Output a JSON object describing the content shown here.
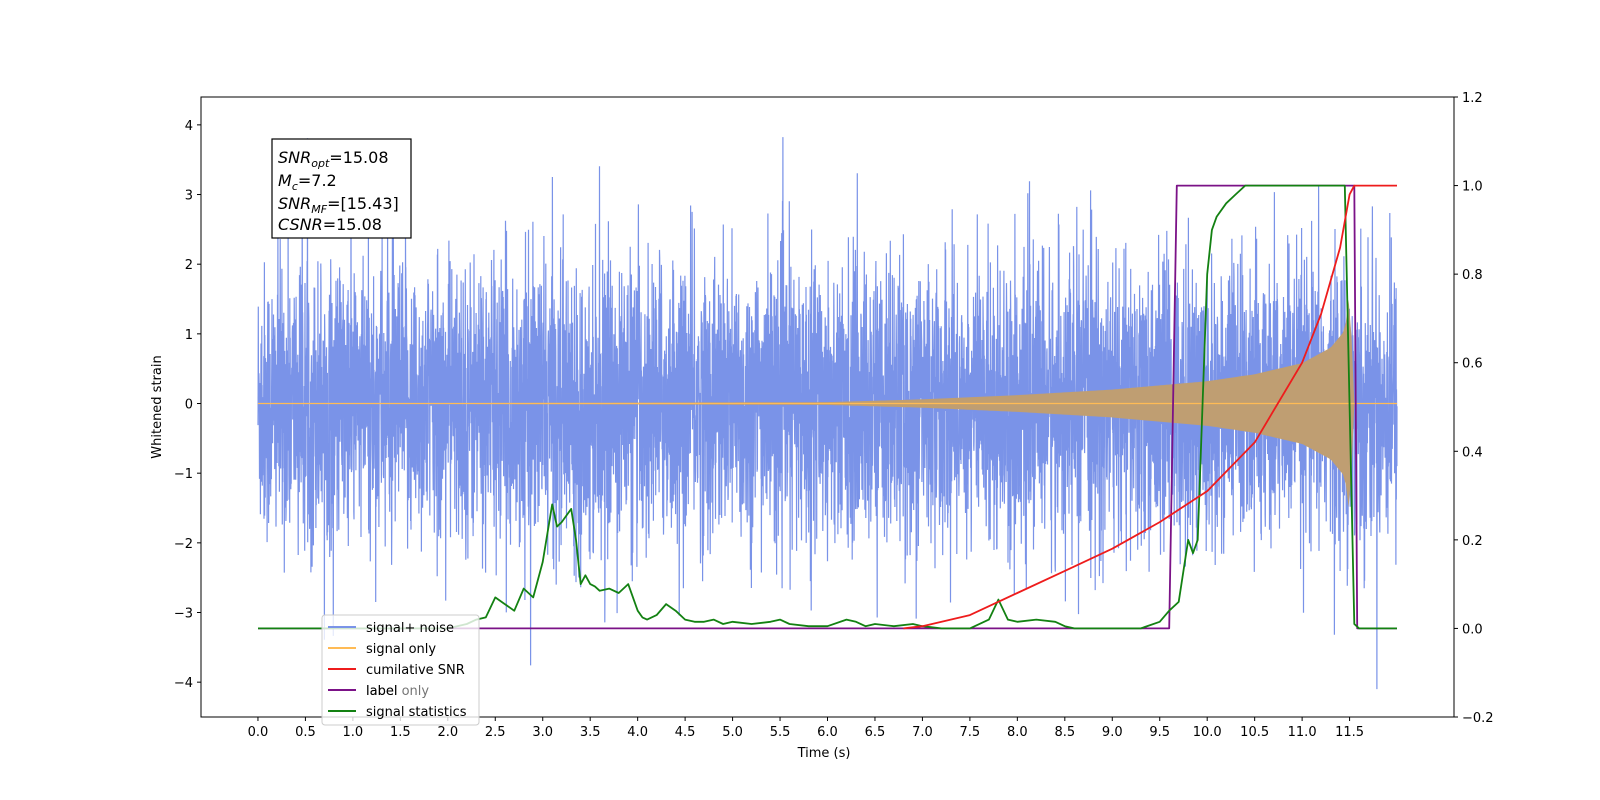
{
  "chart_data": {
    "type": "line",
    "xlabel": "Time (s)",
    "ylabel": "Whitened strain",
    "xlim": [
      -0.6,
      12.6
    ],
    "ylim": [
      -4.5,
      4.4
    ],
    "y2lim": [
      -0.2,
      1.2
    ],
    "x_ticks": [
      "0.0",
      "0.5",
      "1.0",
      "1.5",
      "2.0",
      "2.5",
      "3.0",
      "3.5",
      "4.0",
      "4.5",
      "5.0",
      "5.5",
      "6.0",
      "6.5",
      "7.0",
      "7.5",
      "8.0",
      "8.5",
      "9.0",
      "9.5",
      "10.0",
      "10.5",
      "11.0",
      "11.5"
    ],
    "y_ticks": [
      "−4",
      "−3",
      "−2",
      "−1",
      "0",
      "1",
      "2",
      "3",
      "4"
    ],
    "y2_ticks": [
      "−0.2",
      "0.0",
      "0.2",
      "0.4",
      "0.6",
      "0.8",
      "1.0",
      "1.2"
    ],
    "grid": false,
    "legend_position": "lower-left",
    "annotation": {
      "snr_opt": {
        "base": "SNR",
        "sub": "opt",
        "value": "=15.08"
      },
      "mc": {
        "base": "M",
        "sub": "c",
        "value": "=7.2"
      },
      "snr_mf": {
        "base": "SNR",
        "sub": "MF",
        "value": "=[15.43]"
      },
      "csnr": {
        "base": "CSNR",
        "value": "=15.08"
      }
    },
    "series": [
      {
        "name": "signal+ noise",
        "color": "#7a93e8",
        "axis": "left",
        "description_values": {
          "noise_sigma": 1.0,
          "peak_min": -4.1,
          "peak_max": 4.0
        },
        "x_range": [
          0.0,
          12.0
        ]
      },
      {
        "name": "signal only",
        "color": "#ffbb55",
        "fill_color": "#bf9e72",
        "axis": "left",
        "envelope": {
          "x": [
            0.0,
            6.0,
            7.0,
            8.0,
            9.0,
            10.0,
            10.5,
            11.0,
            11.3,
            11.45,
            11.5,
            11.55,
            12.0
          ],
          "amp": [
            0.0,
            0.02,
            0.06,
            0.12,
            0.2,
            0.32,
            0.42,
            0.58,
            0.8,
            1.05,
            1.6,
            0.0,
            0.0
          ]
        }
      },
      {
        "name": "cumilative SNR",
        "color": "#ee1c1c",
        "axis": "right",
        "x": [
          6.8,
          7.0,
          7.5,
          8.0,
          8.5,
          9.0,
          9.5,
          10.0,
          10.5,
          11.0,
          11.2,
          11.4,
          11.5,
          11.55,
          12.0
        ],
        "y": [
          0.0,
          0.005,
          0.03,
          0.08,
          0.13,
          0.18,
          0.24,
          0.31,
          0.42,
          0.6,
          0.71,
          0.86,
          0.98,
          1.0,
          1.0
        ]
      },
      {
        "name": "label",
        "color": "#7b1287",
        "axis": "right",
        "x": [
          0.0,
          9.6,
          9.68,
          11.55,
          11.58,
          12.0
        ],
        "y": [
          0.0,
          0.0,
          1.0,
          1.0,
          0.0,
          0.0
        ]
      },
      {
        "name": "label only",
        "color": "#7b1287",
        "axis": "right",
        "x": [
          0.0,
          9.6,
          9.68,
          11.55,
          11.58,
          12.0
        ],
        "y": [
          0.0,
          0.0,
          1.0,
          1.0,
          0.0,
          0.0
        ]
      },
      {
        "name": "signal statistics",
        "color": "#138112",
        "axis": "right",
        "x": [
          0.0,
          2.0,
          2.2,
          2.3,
          2.4,
          2.5,
          2.6,
          2.7,
          2.8,
          2.9,
          3.0,
          3.1,
          3.15,
          3.2,
          3.3,
          3.35,
          3.4,
          3.45,
          3.5,
          3.55,
          3.6,
          3.7,
          3.8,
          3.9,
          4.0,
          4.05,
          4.1,
          4.2,
          4.3,
          4.4,
          4.5,
          4.6,
          4.7,
          4.8,
          4.9,
          5.0,
          5.2,
          5.4,
          5.5,
          5.6,
          5.8,
          6.0,
          6.2,
          6.3,
          6.4,
          6.5,
          6.7,
          6.9,
          7.0,
          7.2,
          7.5,
          7.7,
          7.8,
          7.9,
          8.0,
          8.2,
          8.4,
          8.5,
          8.6,
          8.8,
          9.0,
          9.3,
          9.5,
          9.6,
          9.7,
          9.8,
          9.85,
          9.9,
          10.0,
          10.05,
          10.1,
          10.2,
          10.3,
          10.4,
          10.5,
          10.7,
          11.0,
          11.3,
          11.45,
          11.5,
          11.55,
          11.6,
          12.0
        ],
        "y": [
          0.0,
          0.0,
          0.01,
          0.02,
          0.025,
          0.07,
          0.055,
          0.04,
          0.09,
          0.07,
          0.15,
          0.28,
          0.23,
          0.24,
          0.27,
          0.2,
          0.1,
          0.12,
          0.1,
          0.095,
          0.085,
          0.09,
          0.08,
          0.1,
          0.04,
          0.025,
          0.02,
          0.03,
          0.055,
          0.04,
          0.02,
          0.015,
          0.015,
          0.02,
          0.01,
          0.015,
          0.01,
          0.015,
          0.02,
          0.01,
          0.005,
          0.005,
          0.02,
          0.015,
          0.005,
          0.01,
          0.005,
          0.01,
          0.005,
          0.0,
          0.0,
          0.02,
          0.065,
          0.02,
          0.015,
          0.02,
          0.015,
          0.005,
          0.0,
          0.0,
          0.0,
          0.0,
          0.015,
          0.04,
          0.06,
          0.2,
          0.17,
          0.2,
          0.8,
          0.9,
          0.93,
          0.96,
          0.98,
          1.0,
          1.0,
          1.0,
          1.0,
          1.0,
          1.0,
          0.5,
          0.01,
          0.0,
          0.0
        ]
      }
    ]
  }
}
